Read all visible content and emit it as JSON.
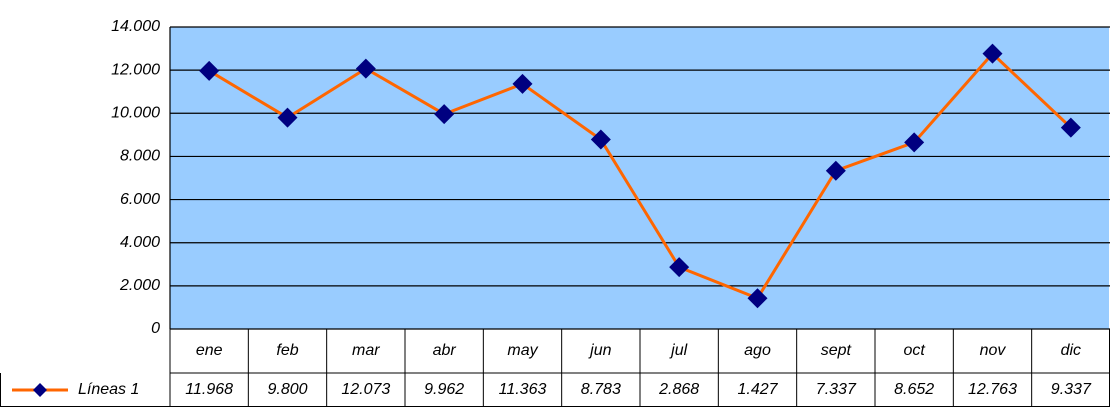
{
  "chart_data": {
    "type": "line",
    "categories": [
      "ene",
      "feb",
      "mar",
      "abr",
      "may",
      "jun",
      "jul",
      "ago",
      "sept",
      "oct",
      "nov",
      "dic"
    ],
    "series": [
      {
        "name": "Líneas 1",
        "color": "#ff6600",
        "marker_color": "#000080",
        "values": [
          11968,
          9800,
          12073,
          9962,
          11363,
          8783,
          2868,
          1427,
          7337,
          8652,
          12763,
          9337
        ],
        "value_labels": [
          "11.968",
          "9.800",
          "12.073",
          "9.962",
          "11.363",
          "8.783",
          "2.868",
          "1.427",
          "7.337",
          "8.652",
          "12.763",
          "9.337"
        ]
      }
    ],
    "ylim": [
      0,
      14000
    ],
    "yticks": [
      {
        "value": 0,
        "label": "0"
      },
      {
        "value": 2000,
        "label": "2.000"
      },
      {
        "value": 4000,
        "label": "4.000"
      },
      {
        "value": 6000,
        "label": "6.000"
      },
      {
        "value": 8000,
        "label": "8.000"
      },
      {
        "value": 10000,
        "label": "10.000"
      },
      {
        "value": 12000,
        "label": "12.000"
      },
      {
        "value": 14000,
        "label": "14.000"
      }
    ],
    "grid": true,
    "plot_background": "#99ccff"
  }
}
